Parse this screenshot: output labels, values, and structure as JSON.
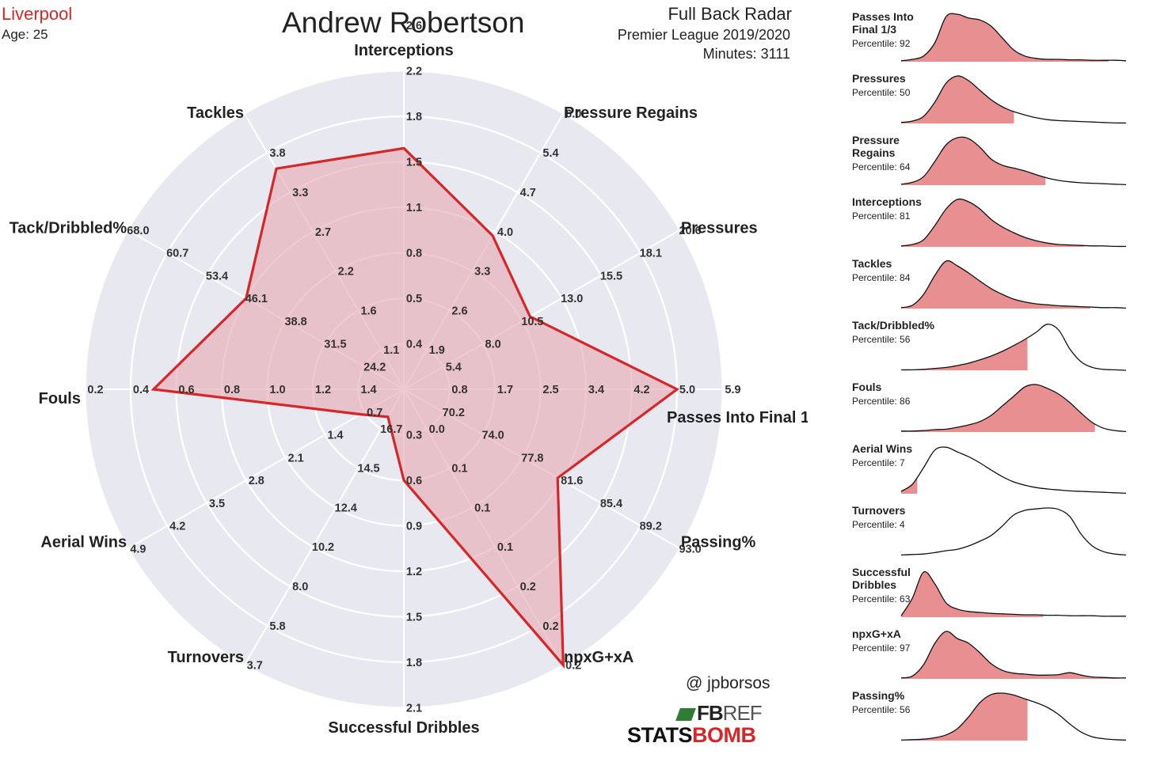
{
  "header": {
    "team": "Liverpool",
    "age": "Age: 25",
    "player": "Andrew Robertson",
    "radar_title": "Full Back Radar",
    "league": "Premier League 2019/2020",
    "minutes": "Minutes: 3111"
  },
  "footer": {
    "credit": "@ jpborsos",
    "fbref_fb": "FB",
    "fbref_ref": "REF",
    "statsbomb_a": "STATS",
    "statsbomb_b": "BOMB"
  },
  "colors": {
    "accent": "#d62728",
    "radar_fill": "#e7a9b3",
    "radar_bg": "#e8e9f0",
    "density_fill": "#e88f91"
  },
  "chart_data": [
    {
      "type": "radar",
      "title": "Andrew Robertson",
      "axes": [
        {
          "name": "Interceptions",
          "ticks": [
            "0.4",
            "0.5",
            "0.8",
            "1.1",
            "1.5",
            "1.8",
            "2.2",
            "2.6"
          ],
          "value_ring": 5.3
        },
        {
          "name": "Pressure Regains",
          "ticks": [
            "1.9",
            "2.6",
            "3.3",
            "4.0",
            "4.7",
            "5.4",
            "6.0"
          ],
          "value_ring": 3.9
        },
        {
          "name": "Pressures",
          "ticks": [
            "5.4",
            "8.0",
            "10.5",
            "13.0",
            "15.5",
            "18.1",
            "20.6"
          ],
          "value_ring": 3.2
        },
        {
          "name": "Passes Into Final 1/3",
          "ticks": [
            "0.8",
            "1.7",
            "2.5",
            "3.4",
            "4.2",
            "5.0",
            "5.9"
          ],
          "value_ring": 6.0
        },
        {
          "name": "Passing%",
          "ticks": [
            "70.2",
            "74.0",
            "77.8",
            "81.6",
            "85.4",
            "89.2",
            "93.0"
          ],
          "value_ring": 3.9
        },
        {
          "name": "npxG+xA",
          "ticks": [
            "0.0",
            "0.1",
            "0.1",
            "0.1",
            "0.2",
            "0.2",
            "0.2"
          ],
          "value_ring": 7.0
        },
        {
          "name": "Successful Dribbles",
          "ticks": [
            "0.3",
            "0.6",
            "0.9",
            "1.2",
            "1.5",
            "1.8",
            "2.1"
          ],
          "value_ring": 2.0
        },
        {
          "name": "Turnovers",
          "ticks": [
            "16.7",
            "14.5",
            "12.4",
            "10.2",
            "8.0",
            "5.8",
            "3.7"
          ],
          "value_ring": 0.7
        },
        {
          "name": "Aerial Wins",
          "ticks": [
            "0.7",
            "1.4",
            "2.1",
            "2.8",
            "3.5",
            "4.2",
            "4.9"
          ],
          "value_ring": 1.1
        },
        {
          "name": "Fouls",
          "ticks": [
            "1.4",
            "1.2",
            "1.0",
            "0.8",
            "0.6",
            "0.4",
            "0.2"
          ],
          "value_ring": 5.5
        },
        {
          "name": "Tack/Dribbled%",
          "ticks": [
            "24.2",
            "31.5",
            "38.8",
            "46.1",
            "53.4",
            "60.7",
            "68.0"
          ],
          "value_ring": 4.0
        },
        {
          "name": "Tackles",
          "ticks": [
            "1.1",
            "1.6",
            "2.2",
            "2.7",
            "3.3",
            "3.8"
          ],
          "value_ring": 5.6
        }
      ]
    },
    {
      "type": "area",
      "panels": [
        {
          "title_lines": [
            "Passes Into",
            "Final 1/3"
          ],
          "percentile_label": "Percentile: 92",
          "percentile": 92,
          "curve": [
            0.02,
            0.05,
            0.12,
            0.4,
            0.95,
            1.0,
            0.92,
            0.88,
            0.75,
            0.5,
            0.25,
            0.12,
            0.07,
            0.05,
            0.05,
            0.04,
            0.04,
            0.03,
            0.03,
            0.03,
            0.02
          ]
        },
        {
          "title_lines": [
            "Pressures"
          ],
          "percentile_label": "Percentile: 50",
          "percentile": 50,
          "curve": [
            0.02,
            0.05,
            0.15,
            0.45,
            0.85,
            1.0,
            0.9,
            0.7,
            0.5,
            0.35,
            0.25,
            0.18,
            0.12,
            0.08,
            0.06,
            0.05,
            0.04,
            0.03,
            0.02,
            0.01,
            0.01
          ]
        },
        {
          "title_lines": [
            "Pressure",
            "Regains"
          ],
          "percentile_label": "Percentile: 64",
          "percentile": 64,
          "curve": [
            0.02,
            0.06,
            0.18,
            0.5,
            0.85,
            1.0,
            0.98,
            0.8,
            0.55,
            0.42,
            0.36,
            0.3,
            0.22,
            0.15,
            0.1,
            0.07,
            0.05,
            0.04,
            0.03,
            0.02,
            0.01
          ]
        },
        {
          "title_lines": [
            "Interceptions"
          ],
          "percentile_label": "Percentile: 81",
          "percentile": 81,
          "curve": [
            0.02,
            0.05,
            0.15,
            0.45,
            0.8,
            1.0,
            0.95,
            0.8,
            0.58,
            0.42,
            0.3,
            0.2,
            0.13,
            0.08,
            0.05,
            0.04,
            0.03,
            0.02,
            0.02,
            0.01,
            0.01
          ]
        },
        {
          "title_lines": [
            "Tackles"
          ],
          "percentile_label": "Percentile: 84",
          "percentile": 84,
          "curve": [
            0.02,
            0.07,
            0.3,
            0.7,
            1.0,
            0.9,
            0.75,
            0.58,
            0.42,
            0.3,
            0.2,
            0.14,
            0.1,
            0.08,
            0.06,
            0.05,
            0.04,
            0.03,
            0.02,
            0.02,
            0.01
          ]
        },
        {
          "title_lines": [
            "Tack/Dribbled%"
          ],
          "percentile_label": "Percentile: 56",
          "percentile": 56,
          "curve": [
            0.01,
            0.01,
            0.02,
            0.04,
            0.06,
            0.1,
            0.15,
            0.22,
            0.3,
            0.4,
            0.52,
            0.65,
            0.8,
            0.97,
            0.85,
            0.45,
            0.18,
            0.06,
            0.02,
            0.01,
            0.0
          ]
        },
        {
          "title_lines": [
            "Fouls"
          ],
          "percentile_label": "Percentile: 86",
          "percentile": 86,
          "curve": [
            0.02,
            0.02,
            0.03,
            0.05,
            0.06,
            0.1,
            0.15,
            0.22,
            0.35,
            0.55,
            0.75,
            0.95,
            1.0,
            0.92,
            0.8,
            0.62,
            0.4,
            0.2,
            0.08,
            0.03,
            0.01
          ]
        },
        {
          "title_lines": [
            "Aerial Wins"
          ],
          "percentile_label": "Percentile: 7",
          "percentile": 7,
          "curve": [
            0.05,
            0.2,
            0.55,
            0.92,
            0.98,
            0.88,
            0.78,
            0.65,
            0.5,
            0.36,
            0.25,
            0.18,
            0.13,
            0.1,
            0.08,
            0.06,
            0.05,
            0.04,
            0.03,
            0.02,
            0.01
          ]
        },
        {
          "title_lines": [
            "Turnovers"
          ],
          "percentile_label": "Percentile: 4",
          "percentile": 4,
          "curve": [
            0.01,
            0.02,
            0.03,
            0.06,
            0.1,
            0.13,
            0.2,
            0.3,
            0.42,
            0.62,
            0.85,
            0.95,
            0.98,
            1.0,
            0.97,
            0.82,
            0.45,
            0.2,
            0.08,
            0.03,
            0.01
          ]
        },
        {
          "title_lines": [
            "Successful",
            "Dribbles"
          ],
          "percentile_label": "Percentile: 63",
          "percentile": 63,
          "curve": [
            0.03,
            0.4,
            0.95,
            0.7,
            0.3,
            0.17,
            0.12,
            0.1,
            0.08,
            0.07,
            0.06,
            0.05,
            0.05,
            0.04,
            0.04,
            0.03,
            0.03,
            0.03,
            0.02,
            0.02,
            0.02
          ]
        },
        {
          "title_lines": [
            "npxG+xA"
          ],
          "percentile_label": "Percentile: 97",
          "percentile": 97,
          "curve": [
            0.02,
            0.06,
            0.3,
            0.75,
            1.0,
            0.85,
            0.75,
            0.55,
            0.32,
            0.18,
            0.12,
            0.1,
            0.08,
            0.08,
            0.09,
            0.13,
            0.08,
            0.04,
            0.03,
            0.02,
            0.02
          ]
        },
        {
          "title_lines": [
            "Passing%"
          ],
          "percentile_label": "Percentile: 56",
          "percentile": 56,
          "curve": [
            0.01,
            0.02,
            0.03,
            0.06,
            0.12,
            0.25,
            0.5,
            0.8,
            0.97,
            1.0,
            0.96,
            0.88,
            0.8,
            0.7,
            0.55,
            0.35,
            0.18,
            0.08,
            0.04,
            0.02,
            0.01
          ]
        }
      ]
    }
  ]
}
